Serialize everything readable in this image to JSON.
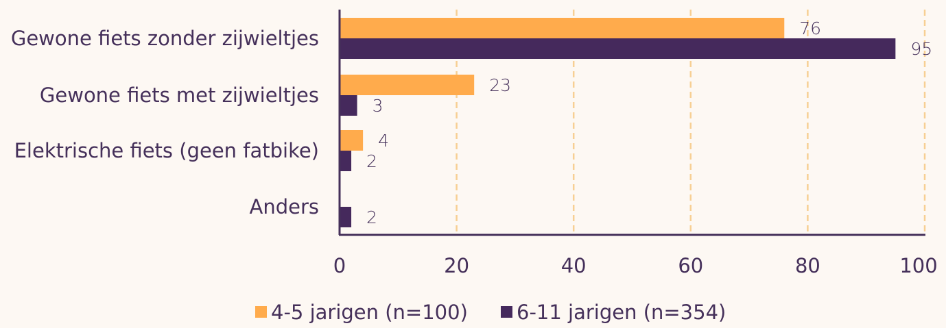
{
  "chart_data": {
    "type": "bar",
    "orientation": "horizontal",
    "categories": [
      "Gewone fiets zonder zijwieltjes",
      "Gewone fiets met zijwieltjes",
      "Elektrische fiets (geen fatbike)",
      "Anders"
    ],
    "series": [
      {
        "name": "4-5 jarigen (n=100)",
        "values": [
          76,
          23,
          4,
          0
        ],
        "labels": [
          "76",
          "23",
          "4",
          ""
        ],
        "color": "#ffab4c"
      },
      {
        "name": "6-11 jarigen (n=354)",
        "values": [
          95,
          3,
          2,
          2
        ],
        "labels": [
          "95",
          "3",
          "2",
          "2"
        ],
        "color": "#45295c"
      }
    ],
    "xlim": [
      0,
      100
    ],
    "xticks": [
      0,
      20,
      40,
      60,
      80,
      100
    ],
    "xtick_labels": [
      "0",
      "20",
      "40",
      "60",
      "80",
      "100"
    ],
    "grid": "vertical dashed",
    "grid_color": "#f7cf93",
    "axis_color": "#45305a",
    "text_color": "#45305a",
    "background": "#fdf8f3",
    "legend_position": "bottom"
  }
}
